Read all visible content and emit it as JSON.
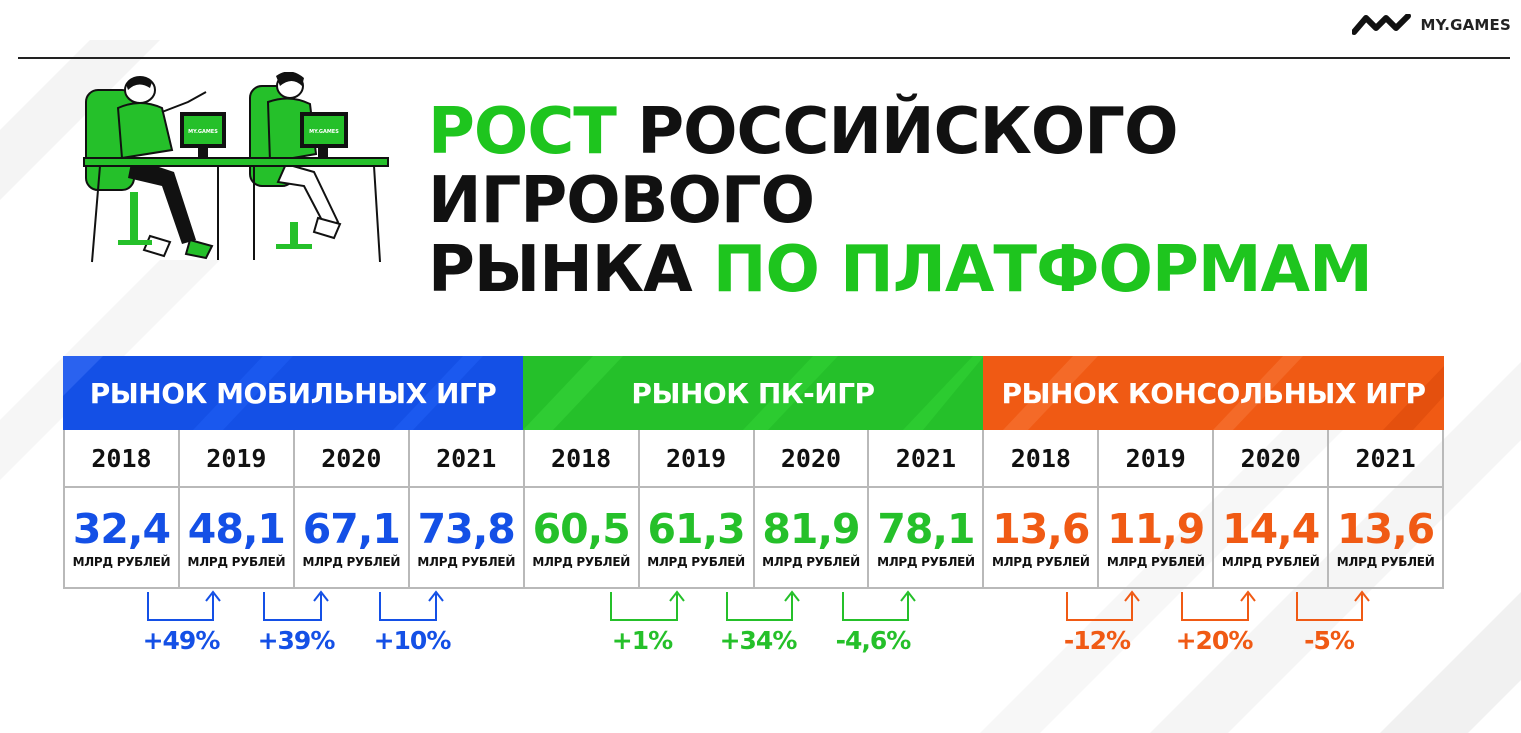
{
  "brand": {
    "name": "MY.GAMES"
  },
  "title": {
    "accent_a": "РОСТ",
    "plain_a": "РОССИЙСКОГО ИГРОВОГО",
    "plain_b": "РЫНКА",
    "accent_b": "ПО ПЛАТФОРМАМ"
  },
  "colors": {
    "blue": "#1450e6",
    "green": "#25c02a",
    "orange": "#f05a14",
    "text": "#111111"
  },
  "illustration": {
    "monitor_logo_a": "MY.GAMES",
    "monitor_logo_b": "MY.GAMES"
  },
  "unit": "МЛРД РУБЛЕЙ",
  "chart_data": {
    "type": "table",
    "unit": "МЛРД РУБЛЕЙ",
    "groups": [
      {
        "name": "РЫНОК МОБИЛЬНЫХ ИГР",
        "color": "#1450e6",
        "years": [
          "2018",
          "2019",
          "2020",
          "2021"
        ],
        "values": [
          "32,4",
          "48,1",
          "67,1",
          "73,8"
        ],
        "changes": [
          "+49%",
          "+39%",
          "+10%"
        ]
      },
      {
        "name": "РЫНОК ПК-ИГР",
        "color": "#25c02a",
        "years": [
          "2018",
          "2019",
          "2020",
          "2021"
        ],
        "values": [
          "60,5",
          "61,3",
          "81,9",
          "78,1"
        ],
        "changes": [
          "+1%",
          "+34%",
          "-4,6%"
        ]
      },
      {
        "name": "РЫНОК КОНСОЛЬНЫХ ИГР",
        "color": "#f05a14",
        "years": [
          "2018",
          "2019",
          "2020",
          "2021"
        ],
        "values": [
          "13,6",
          "11,9",
          "14,4",
          "13,6"
        ],
        "changes": [
          "-12%",
          "+20%",
          "-5%"
        ]
      }
    ]
  }
}
